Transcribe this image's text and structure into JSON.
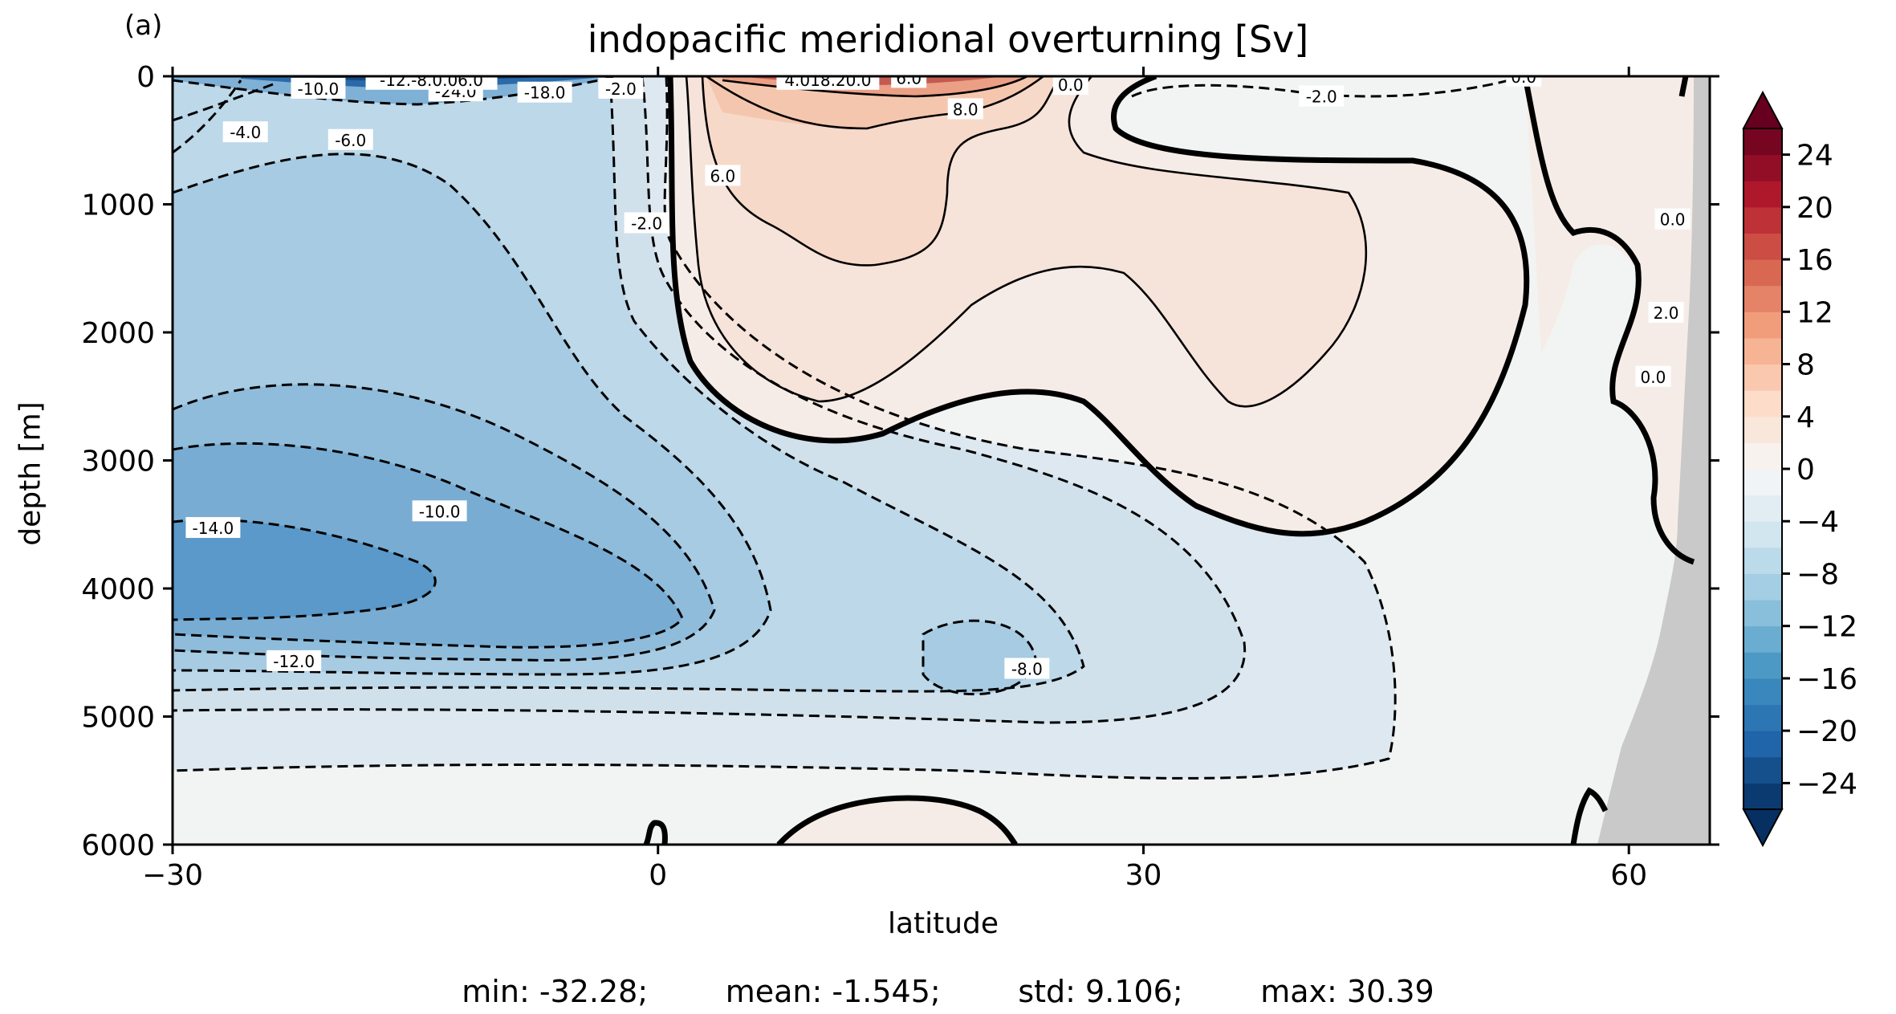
{
  "panel_label": "(a)",
  "chart_data": {
    "type": "contour",
    "title": "indopacific meridional overturning [Sv]",
    "xlabel": "latitude",
    "ylabel": "depth [m]",
    "xlim": [
      -30,
      65
    ],
    "ylim": [
      6000,
      0
    ],
    "x_ticks": [
      -30,
      0,
      30,
      60
    ],
    "x_tick_labels": [
      "−30",
      "0",
      "30",
      "60"
    ],
    "y_ticks": [
      0,
      1000,
      2000,
      3000,
      4000,
      5000,
      6000
    ],
    "y_tick_labels": [
      "0",
      "1000",
      "2000",
      "3000",
      "4000",
      "5000",
      "6000"
    ],
    "colormap": "RdBu_r",
    "contour_interval": 2,
    "colorbar": {
      "range": [
        -26,
        26
      ],
      "ticks": [
        -24,
        -20,
        -16,
        -12,
        -8,
        -4,
        0,
        4,
        8,
        12,
        16,
        20,
        24
      ],
      "tick_labels": [
        "−24",
        "−20",
        "−16",
        "−12",
        "−8",
        "−4",
        "0",
        "4",
        "8",
        "12",
        "16",
        "20",
        "24"
      ],
      "extend": "both"
    },
    "contour_labels": [
      {
        "text": "-14.0",
        "lat": -27.5,
        "depth": 3530
      },
      {
        "text": "-10.0",
        "lat": -13.5,
        "depth": 3400
      },
      {
        "text": "-12.0",
        "lat": -22.5,
        "depth": 4570
      },
      {
        "text": "-8.0",
        "lat": 22.8,
        "depth": 4630
      },
      {
        "text": "-6.0",
        "lat": -19.0,
        "depth": 500
      },
      {
        "text": "-4.0",
        "lat": -25.5,
        "depth": 440
      },
      {
        "text": "-2.0",
        "lat": -0.7,
        "depth": 1150
      },
      {
        "text": "6.0",
        "lat": 4.0,
        "depth": 780
      },
      {
        "text": "8.0",
        "lat": 19.0,
        "depth": 260
      },
      {
        "text": "-2.0",
        "lat": 41.0,
        "depth": 160
      },
      {
        "text": "0.0",
        "lat": 62.7,
        "depth": 1120
      },
      {
        "text": "2.0",
        "lat": 62.3,
        "depth": 1850
      },
      {
        "text": "0.0",
        "lat": 61.5,
        "depth": 2350
      },
      {
        "text": "-18.0",
        "lat": -7.0,
        "depth": 130
      },
      {
        "text": "-24.0",
        "lat": -12.5,
        "depth": 120
      },
      {
        "text": "-12.-8.0.06.0",
        "lat": -14.0,
        "depth": 30
      },
      {
        "text": "-10.0",
        "lat": -21.0,
        "depth": 100
      },
      {
        "text": "-2.0",
        "lat": -2.3,
        "depth": 100
      },
      {
        "text": "4.018.20.0",
        "lat": 10.5,
        "depth": 30
      },
      {
        "text": "6.0",
        "lat": 15.5,
        "depth": 15
      },
      {
        "text": "0.0",
        "lat": 25.5,
        "depth": 70
      },
      {
        "text": "0.0",
        "lat": 53.5,
        "depth": 5
      }
    ],
    "features": {
      "southern_surface_minimum": {
        "value": -32.28,
        "lat": -22,
        "depth": 30
      },
      "deep_negative_cell_core": {
        "value": -14,
        "lat": -28,
        "depth": 3900
      },
      "secondary_deep_minimum": {
        "value": -8,
        "lat": 21,
        "depth": 4600
      },
      "positive_cell_max": {
        "value": 30.39,
        "lat": 14,
        "depth": 20
      },
      "positive_cell_interior": {
        "value": 6,
        "lat": 20,
        "depth": 1400
      },
      "deep_positive_patch": {
        "value": 0.5,
        "lat": 15,
        "depth": 5900
      },
      "land_mask_start_lat": 58
    },
    "stats": {
      "min": "-32.28",
      "mean": "-1.545",
      "std": "9.106",
      "max": "30.39"
    }
  },
  "stats_text": "min: -32.28;        mean: -1.545;        std: 9.106;        max: 30.39"
}
